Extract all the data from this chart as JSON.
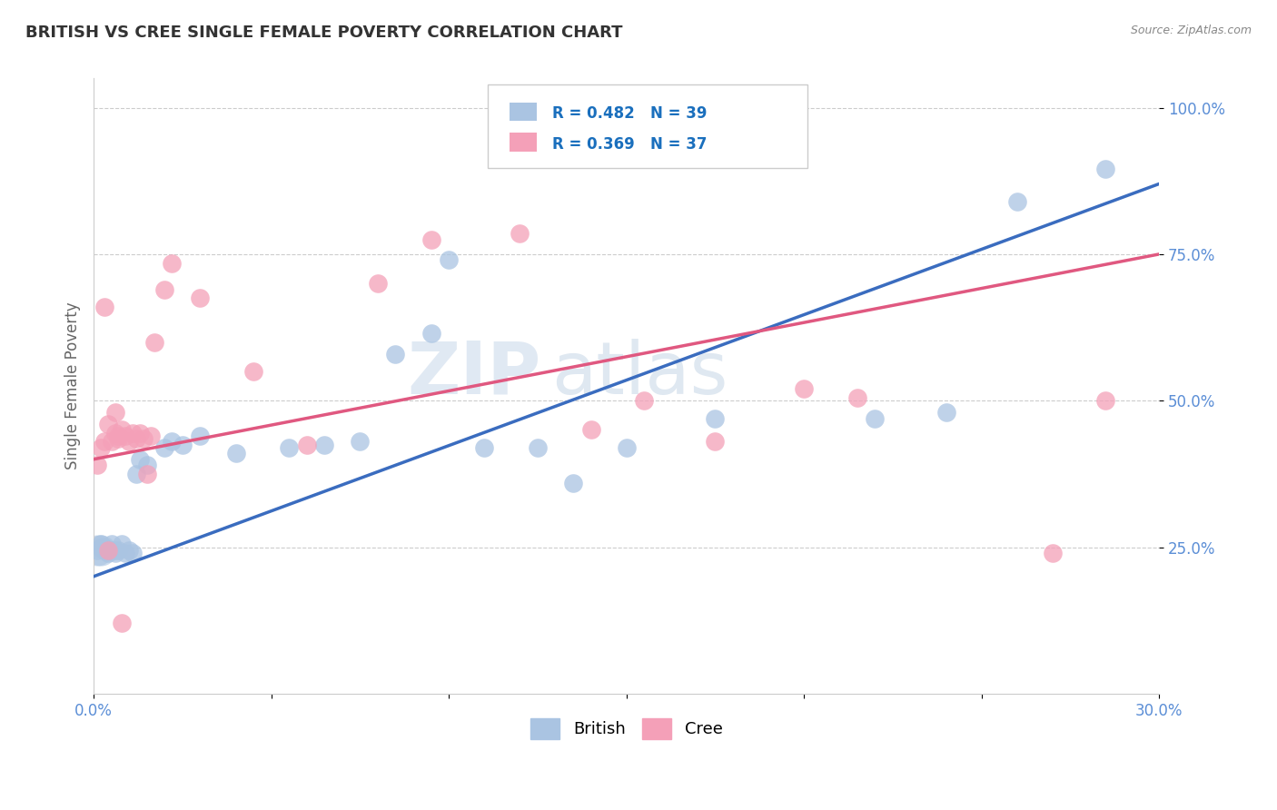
{
  "title": "BRITISH VS CREE SINGLE FEMALE POVERTY CORRELATION CHART",
  "source": "Source: ZipAtlas.com",
  "xlabel": "",
  "ylabel": "Single Female Poverty",
  "xlim": [
    0.0,
    0.3
  ],
  "ylim": [
    0.0,
    1.05
  ],
  "yticks": [
    0.25,
    0.5,
    0.75,
    1.0
  ],
  "ytick_labels": [
    "25.0%",
    "50.0%",
    "75.0%",
    "100.0%"
  ],
  "xticks": [
    0.0,
    0.05,
    0.1,
    0.15,
    0.2,
    0.25,
    0.3
  ],
  "xtick_labels": [
    "0.0%",
    "",
    "",
    "",
    "",
    "",
    "30.0%"
  ],
  "british_r": 0.482,
  "british_n": 39,
  "cree_r": 0.369,
  "cree_n": 37,
  "british_color": "#aac4e2",
  "cree_color": "#f4a0b8",
  "line_british_color": "#3a6cbf",
  "line_cree_color": "#e05880",
  "watermark_zip": "ZIP",
  "watermark_atlas": "atlas",
  "british_x": [
    0.001,
    0.002,
    0.002,
    0.003,
    0.003,
    0.004,
    0.004,
    0.005,
    0.005,
    0.006,
    0.006,
    0.007,
    0.008,
    0.009,
    0.01,
    0.011,
    0.012,
    0.013,
    0.015,
    0.02,
    0.022,
    0.025,
    0.03,
    0.04,
    0.055,
    0.065,
    0.075,
    0.085,
    0.095,
    0.1,
    0.11,
    0.125,
    0.135,
    0.15,
    0.175,
    0.22,
    0.24,
    0.26,
    0.285
  ],
  "british_y": [
    0.245,
    0.25,
    0.255,
    0.245,
    0.25,
    0.24,
    0.245,
    0.245,
    0.255,
    0.24,
    0.245,
    0.245,
    0.255,
    0.24,
    0.245,
    0.24,
    0.375,
    0.4,
    0.39,
    0.42,
    0.43,
    0.425,
    0.44,
    0.41,
    0.42,
    0.425,
    0.43,
    0.58,
    0.615,
    0.74,
    0.42,
    0.42,
    0.36,
    0.42,
    0.47,
    0.47,
    0.48,
    0.84,
    0.895
  ],
  "cree_x": [
    0.001,
    0.002,
    0.003,
    0.004,
    0.005,
    0.006,
    0.006,
    0.007,
    0.007,
    0.008,
    0.009,
    0.01,
    0.011,
    0.012,
    0.013,
    0.014,
    0.015,
    0.016,
    0.017,
    0.02,
    0.022,
    0.03,
    0.045,
    0.06,
    0.08,
    0.095,
    0.12,
    0.14,
    0.155,
    0.175,
    0.2,
    0.215,
    0.27,
    0.285,
    0.003,
    0.004,
    0.008
  ],
  "cree_y": [
    0.39,
    0.42,
    0.43,
    0.46,
    0.43,
    0.445,
    0.48,
    0.44,
    0.435,
    0.45,
    0.44,
    0.43,
    0.445,
    0.435,
    0.445,
    0.435,
    0.375,
    0.44,
    0.6,
    0.69,
    0.735,
    0.675,
    0.55,
    0.425,
    0.7,
    0.775,
    0.785,
    0.45,
    0.5,
    0.43,
    0.52,
    0.505,
    0.24,
    0.5,
    0.66,
    0.245,
    0.12
  ],
  "title_color": "#333333",
  "title_fontsize": 13,
  "axis_label_color": "#666666",
  "tick_color": "#5b8ed6",
  "grid_color": "#cccccc",
  "background_color": "#ffffff",
  "legend_color": "#1a6fbd"
}
